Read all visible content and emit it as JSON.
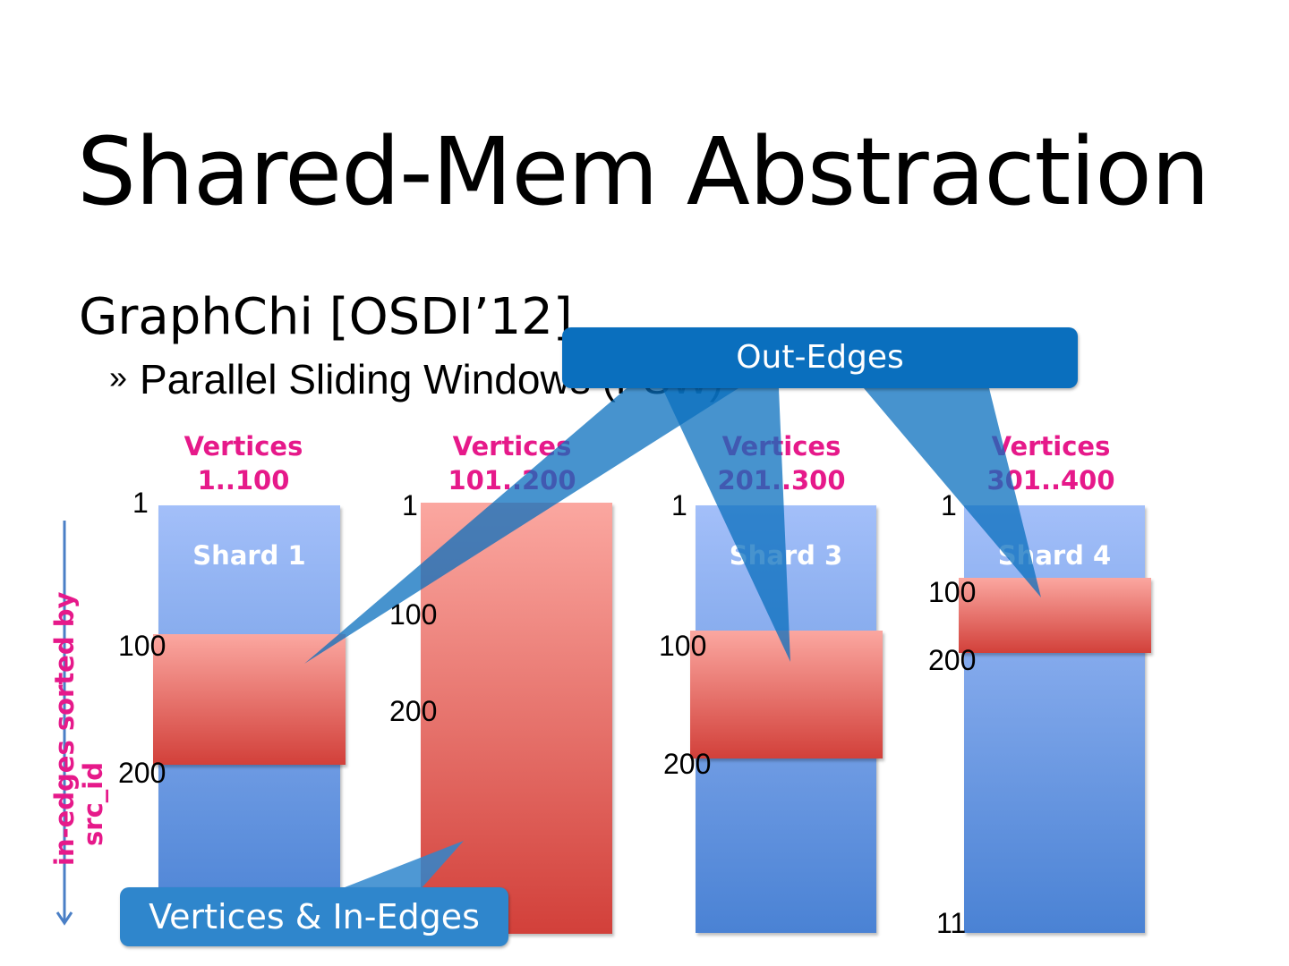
{
  "slide": {
    "title": "Shared-Mem Abstraction",
    "subtitle": "GraphChi [OSDI’12]",
    "bullet_mark": "»",
    "bullet": "Parallel Sliding Windows (PSW)"
  },
  "columns": [
    {
      "label_line1": "Vertices",
      "label_line2": "1..100",
      "shard_name": "Shard 1",
      "ticks": [
        "1",
        "100",
        "200"
      ]
    },
    {
      "label_line1": "Vertices",
      "label_line2": "101..200",
      "shard_name": "",
      "ticks": [
        "1",
        "100",
        "200"
      ]
    },
    {
      "label_line1": "Vertices",
      "label_line2": "201..300",
      "shard_name": "Shard 3",
      "ticks": [
        "1",
        "100",
        "200"
      ]
    },
    {
      "label_line1": "Vertices",
      "label_line2": "301..400",
      "shard_name": "Shard 4",
      "ticks": [
        "1",
        "100",
        "200",
        "11"
      ]
    }
  ],
  "axis": {
    "label_line1": "in-edges  sorted  by",
    "label_line2": "src_id"
  },
  "callouts": {
    "out_edges": "Out-Edges",
    "vertices_in_edges": "Vertices & In-Edges"
  },
  "colors": {
    "label_magenta": "#e6198a",
    "callout_blue": "#0a6fbe",
    "shard_blue_top": "#a3bff9",
    "shard_blue_bottom": "#4a82d4",
    "window_red_top": "#fba7a0",
    "window_red_bottom": "#d2403a"
  }
}
